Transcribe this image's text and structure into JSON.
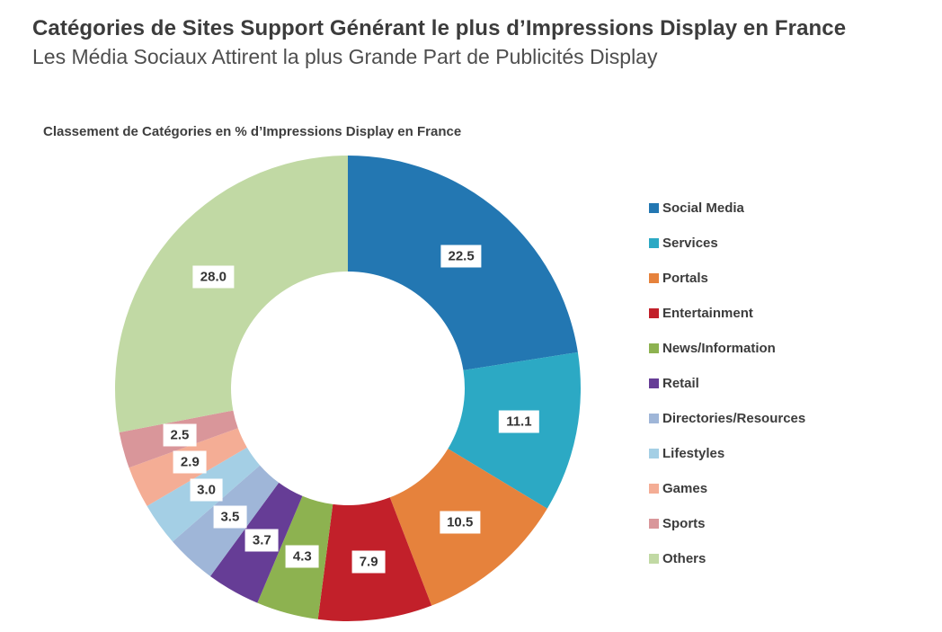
{
  "page": {
    "title": "Catégories de Sites Support Générant le plus d’Impressions Display en France",
    "subtitle": "Les Média Sociaux Attirent la plus Grande Part de Publicités Display"
  },
  "chart_data": {
    "type": "pie",
    "donut": true,
    "title": "Classement de Catégories en % d’Impressions Display en France",
    "unit": "%",
    "start_angle_deg": 0,
    "direction": "clockwise",
    "hole_radius_ratio": 0.5,
    "legend_position": "right",
    "categories": [
      "Social Media",
      "Services",
      "Portals",
      "Entertainment",
      "News/Information",
      "Retail",
      "Directories/Resources",
      "Lifestyles",
      "Games",
      "Sports",
      "Others"
    ],
    "values": [
      22.5,
      11.1,
      10.5,
      7.9,
      4.3,
      3.7,
      3.5,
      3.0,
      2.9,
      2.5,
      28.0
    ],
    "labels": [
      "22.5",
      "11.1",
      "10.5",
      "7.9",
      "4.3",
      "3.7",
      "3.5",
      "3.0",
      "2.9",
      "2.5",
      "28.0"
    ],
    "colors": [
      "#2377B2",
      "#2CA9C4",
      "#E6823C",
      "#C2202A",
      "#8DB250",
      "#663D96",
      "#9FB6D8",
      "#A4CFE5",
      "#F4AD95",
      "#D9969A",
      "#C1D9A4"
    ]
  }
}
